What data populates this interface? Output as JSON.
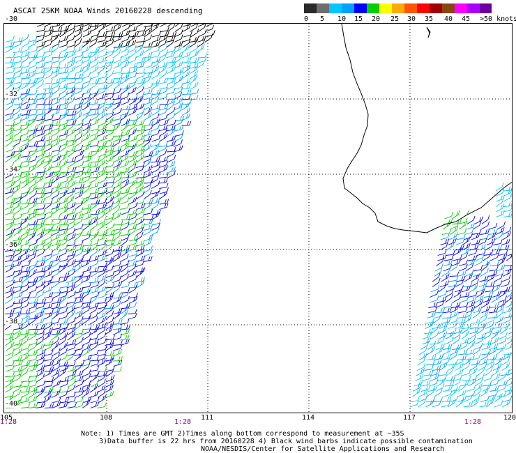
{
  "title": "ASCAT 25KM NOAA Winds 20160228 descending",
  "legend": {
    "colors": [
      "#2a2a2a",
      "#6e6e6e",
      "#00c8ff",
      "#00a0ff",
      "#0000ff",
      "#00d000",
      "#ffff00",
      "#ffaa00",
      "#ff5500",
      "#ff0000",
      "#a00000",
      "#8b4513",
      "#ff00ff",
      "#aa00ff",
      "#6a00a0"
    ],
    "ticks": [
      "0",
      "5",
      "10",
      "15",
      "20",
      "25",
      "30",
      "35",
      "40",
      "45",
      ">50 knots"
    ]
  },
  "lat_labels": [
    "-30",
    "-32",
    "-34",
    "-36",
    "-38",
    "-40"
  ],
  "lon_labels": [
    "105",
    "108",
    "111",
    "114",
    "117",
    "120"
  ],
  "time_labels": [
    "1:28",
    "1:28",
    "1:28"
  ],
  "notes": [
    "Note: 1) Times are GMT 2)Times along bottom correspond to measurement at ~35S",
    "3)Data buffer is 22 hrs from 20160228 4) Black wind barbs indicate possible contamination",
    "NOAA/NESDIS/Center for Satellite Applications and Research"
  ],
  "barb_colors": {
    "contaminated": "#000000",
    "cyan": "#00c8ff",
    "sky": "#00a0ff",
    "blue": "#0000ff",
    "green": "#00d000"
  }
}
